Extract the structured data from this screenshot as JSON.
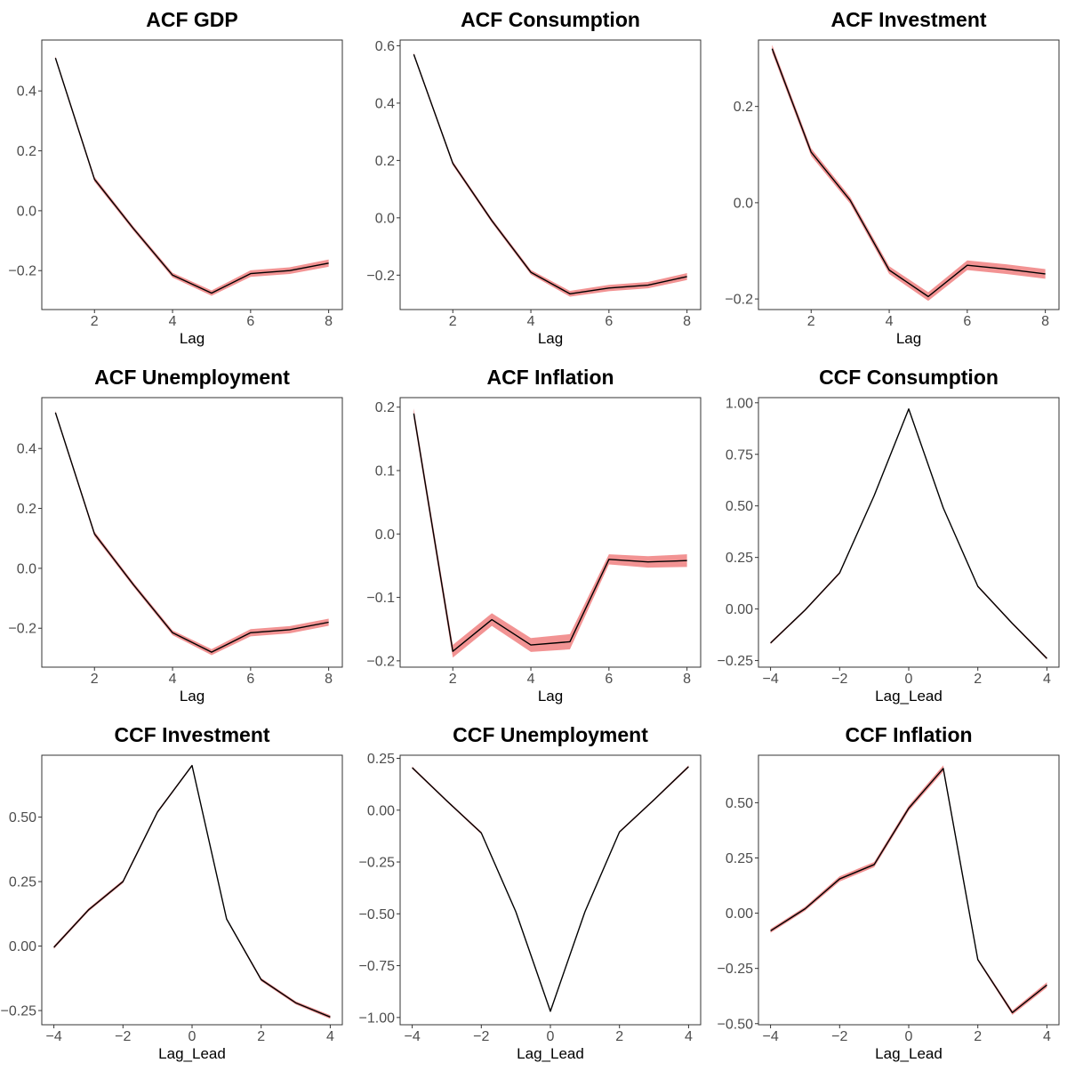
{
  "chart_data": [
    {
      "type": "line",
      "title": "ACF GDP",
      "xlabel": "Lag",
      "x": [
        1,
        2,
        3,
        4,
        5,
        6,
        7,
        8
      ],
      "series": [
        {
          "values": [
            0.51,
            0.105,
            -0.06,
            -0.215,
            -0.275,
            -0.21,
            -0.2,
            -0.175
          ]
        }
      ],
      "band_halfwidth": [
        0.006,
        0.008,
        0.007,
        0.008,
        0.009,
        0.011,
        0.011,
        0.012
      ],
      "xlim": [
        0.65,
        8.35
      ],
      "ylim": [
        -0.33,
        0.57
      ],
      "xticks": [
        2,
        4,
        6,
        8
      ],
      "yticks": [
        {
          "value": 0.4,
          "label": "0.4"
        },
        {
          "value": 0.2,
          "label": "0.2"
        },
        {
          "value": 0.0,
          "label": "0.0"
        },
        {
          "value": -0.2,
          "label": "−0.2"
        }
      ],
      "grid": false
    },
    {
      "type": "line",
      "title": "ACF Consumption",
      "xlabel": "Lag",
      "x": [
        1,
        2,
        3,
        4,
        5,
        6,
        7,
        8
      ],
      "series": [
        {
          "values": [
            0.57,
            0.19,
            -0.01,
            -0.19,
            -0.265,
            -0.245,
            -0.235,
            -0.205
          ]
        }
      ],
      "band_halfwidth": [
        0.006,
        0.007,
        0.007,
        0.008,
        0.01,
        0.011,
        0.011,
        0.012
      ],
      "xlim": [
        0.65,
        8.35
      ],
      "ylim": [
        -0.32,
        0.62
      ],
      "xticks": [
        2,
        4,
        6,
        8
      ],
      "yticks": [
        {
          "value": 0.6,
          "label": "0.6"
        },
        {
          "value": 0.4,
          "label": "0.4"
        },
        {
          "value": 0.2,
          "label": "0.2"
        },
        {
          "value": 0.0,
          "label": "0.0"
        },
        {
          "value": -0.2,
          "label": "−0.2"
        }
      ],
      "grid": false
    },
    {
      "type": "line",
      "title": "ACF Investment",
      "xlabel": "Lag",
      "x": [
        1,
        2,
        3,
        4,
        5,
        6,
        7,
        8
      ],
      "series": [
        {
          "values": [
            0.32,
            0.105,
            0.005,
            -0.14,
            -0.195,
            -0.13,
            -0.138,
            -0.148
          ]
        }
      ],
      "band_halfwidth": [
        0.008,
        0.008,
        0.007,
        0.008,
        0.009,
        0.01,
        0.01,
        0.01
      ],
      "xlim": [
        0.65,
        8.35
      ],
      "ylim": [
        -0.222,
        0.338
      ],
      "xticks": [
        2,
        4,
        6,
        8
      ],
      "yticks": [
        {
          "value": 0.2,
          "label": "0.2"
        },
        {
          "value": 0.0,
          "label": "0.0"
        },
        {
          "value": -0.2,
          "label": "−0.2"
        }
      ],
      "grid": false
    },
    {
      "type": "line",
      "title": "ACF Unemployment",
      "xlabel": "Lag",
      "x": [
        1,
        2,
        3,
        4,
        5,
        6,
        7,
        8
      ],
      "series": [
        {
          "values": [
            0.52,
            0.115,
            -0.055,
            -0.215,
            -0.28,
            -0.215,
            -0.205,
            -0.18
          ]
        }
      ],
      "band_halfwidth": [
        0.006,
        0.008,
        0.007,
        0.008,
        0.01,
        0.012,
        0.012,
        0.012
      ],
      "xlim": [
        0.65,
        8.35
      ],
      "ylim": [
        -0.33,
        0.57
      ],
      "xticks": [
        2,
        4,
        6,
        8
      ],
      "yticks": [
        {
          "value": 0.4,
          "label": "0.4"
        },
        {
          "value": 0.2,
          "label": "0.2"
        },
        {
          "value": 0.0,
          "label": "0.0"
        },
        {
          "value": -0.2,
          "label": "−0.2"
        }
      ],
      "grid": false
    },
    {
      "type": "line",
      "title": "ACF Inflation",
      "xlabel": "Lag",
      "x": [
        1,
        2,
        3,
        4,
        5,
        6,
        7,
        8
      ],
      "series": [
        {
          "values": [
            0.19,
            -0.185,
            -0.135,
            -0.175,
            -0.17,
            -0.04,
            -0.044,
            -0.042
          ]
        }
      ],
      "band_halfwidth": [
        0.008,
        0.01,
        0.01,
        0.011,
        0.012,
        0.008,
        0.009,
        0.01
      ],
      "xlim": [
        0.65,
        8.35
      ],
      "ylim": [
        -0.21,
        0.215
      ],
      "xticks": [
        2,
        4,
        6,
        8
      ],
      "yticks": [
        {
          "value": 0.2,
          "label": "0.2"
        },
        {
          "value": 0.1,
          "label": "0.1"
        },
        {
          "value": 0.0,
          "label": "0.0"
        },
        {
          "value": -0.1,
          "label": "−0.1"
        },
        {
          "value": -0.2,
          "label": "−0.2"
        }
      ],
      "grid": false
    },
    {
      "type": "line",
      "title": "CCF Consumption",
      "xlabel": "Lag_Lead",
      "x": [
        -4,
        -3,
        -2,
        -1,
        0,
        1,
        2,
        3,
        4
      ],
      "series": [
        {
          "values": [
            -0.165,
            -0.005,
            0.175,
            0.55,
            0.97,
            0.49,
            0.11,
            -0.07,
            -0.24
          ]
        }
      ],
      "band_halfwidth": [
        0.006,
        0.005,
        0.006,
        0.004,
        0.003,
        0.004,
        0.005,
        0.005,
        0.006
      ],
      "xlim": [
        -4.35,
        4.35
      ],
      "ylim": [
        -0.282,
        1.025
      ],
      "xticks": [
        {
          "value": -4,
          "label": "−4"
        },
        {
          "value": -2,
          "label": "−2"
        },
        {
          "value": 0,
          "label": "0"
        },
        {
          "value": 2,
          "label": "2"
        },
        {
          "value": 4,
          "label": "4"
        }
      ],
      "yticks": [
        {
          "value": 1.0,
          "label": "1.00"
        },
        {
          "value": 0.75,
          "label": "0.75"
        },
        {
          "value": 0.5,
          "label": "0.50"
        },
        {
          "value": 0.25,
          "label": "0.25"
        },
        {
          "value": 0.0,
          "label": "0.00"
        },
        {
          "value": -0.25,
          "label": "−0.25"
        }
      ],
      "grid": false
    },
    {
      "type": "line",
      "title": "CCF Investment",
      "xlabel": "Lag_Lead",
      "x": [
        -4,
        -3,
        -2,
        -1,
        0,
        1,
        2,
        3,
        4
      ],
      "series": [
        {
          "values": [
            -0.005,
            0.14,
            0.25,
            0.52,
            0.7,
            0.105,
            -0.13,
            -0.22,
            -0.275
          ]
        }
      ],
      "band_halfwidth": [
        0.006,
        0.006,
        0.006,
        0.005,
        0.004,
        0.004,
        0.006,
        0.006,
        0.007
      ],
      "xlim": [
        -4.35,
        4.35
      ],
      "ylim": [
        -0.305,
        0.74
      ],
      "xticks": [
        {
          "value": -4,
          "label": "−4"
        },
        {
          "value": -2,
          "label": "−2"
        },
        {
          "value": 0,
          "label": "0"
        },
        {
          "value": 2,
          "label": "2"
        },
        {
          "value": 4,
          "label": "4"
        }
      ],
      "yticks": [
        {
          "value": 0.5,
          "label": "0.50"
        },
        {
          "value": 0.25,
          "label": "0.25"
        },
        {
          "value": 0.0,
          "label": "0.00"
        },
        {
          "value": -0.25,
          "label": "−0.25"
        }
      ],
      "grid": false
    },
    {
      "type": "line",
      "title": "CCF Unemployment",
      "xlabel": "Lag_Lead",
      "x": [
        -4,
        -3,
        -2,
        -1,
        0,
        1,
        2,
        3,
        4
      ],
      "series": [
        {
          "values": [
            0.205,
            0.045,
            -0.11,
            -0.49,
            -0.97,
            -0.49,
            -0.105,
            0.05,
            0.21
          ]
        }
      ],
      "band_halfwidth": [
        0.006,
        0.005,
        0.006,
        0.004,
        0.003,
        0.004,
        0.005,
        0.005,
        0.006
      ],
      "xlim": [
        -4.35,
        4.35
      ],
      "ylim": [
        -1.035,
        0.265
      ],
      "xticks": [
        {
          "value": -4,
          "label": "−4"
        },
        {
          "value": -2,
          "label": "−2"
        },
        {
          "value": 0,
          "label": "0"
        },
        {
          "value": 2,
          "label": "2"
        },
        {
          "value": 4,
          "label": "4"
        }
      ],
      "yticks": [
        {
          "value": 0.25,
          "label": "0.25"
        },
        {
          "value": 0.0,
          "label": "0.00"
        },
        {
          "value": -0.25,
          "label": "−0.25"
        },
        {
          "value": -0.5,
          "label": "−0.50"
        },
        {
          "value": -0.75,
          "label": "−0.75"
        },
        {
          "value": -1.0,
          "label": "−1.00"
        }
      ],
      "grid": false
    },
    {
      "type": "line",
      "title": "CCF Inflation",
      "xlabel": "Lag_Lead",
      "x": [
        -4,
        -3,
        -2,
        -1,
        0,
        1,
        2,
        3,
        4
      ],
      "series": [
        {
          "values": [
            -0.08,
            0.02,
            0.155,
            0.22,
            0.475,
            0.655,
            -0.21,
            -0.45,
            -0.325
          ]
        }
      ],
      "band_halfwidth": [
        0.009,
        0.009,
        0.012,
        0.012,
        0.012,
        0.014,
        0.006,
        0.01,
        0.012
      ],
      "xlim": [
        -4.35,
        4.35
      ],
      "ylim": [
        -0.505,
        0.715
      ],
      "xticks": [
        {
          "value": -4,
          "label": "−4"
        },
        {
          "value": -2,
          "label": "−2"
        },
        {
          "value": 0,
          "label": "0"
        },
        {
          "value": 2,
          "label": "2"
        },
        {
          "value": 4,
          "label": "4"
        }
      ],
      "yticks": [
        {
          "value": 0.5,
          "label": "0.50"
        },
        {
          "value": 0.25,
          "label": "0.25"
        },
        {
          "value": 0.0,
          "label": "0.00"
        },
        {
          "value": -0.25,
          "label": "−0.25"
        },
        {
          "value": -0.5,
          "label": "−0.50"
        }
      ],
      "grid": false
    }
  ],
  "colors": {
    "band": "#f08080",
    "line": "#000000",
    "frame": "#333333",
    "tick_text": "#4d4d4d"
  }
}
